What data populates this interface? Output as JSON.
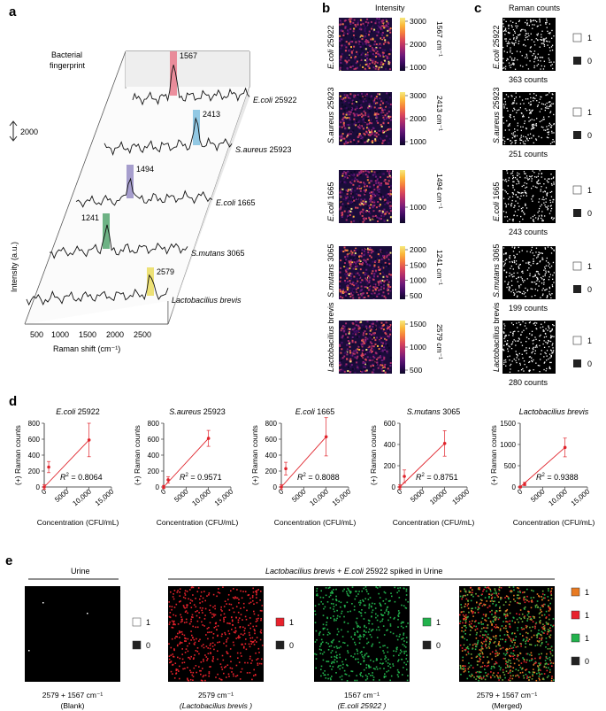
{
  "panel_labels": {
    "a": "a",
    "b": "b",
    "c": "c",
    "d": "d",
    "e": "e"
  },
  "panel_a": {
    "annotation_line1": "Bacterial",
    "annotation_line2": "fingerprint",
    "scale_value": "2000",
    "ylabel": "Intensity (a.u.)",
    "xlabel": "Raman shift (cm⁻¹)",
    "xticks": [
      "500",
      "1000",
      "1500",
      "2000",
      "2500"
    ],
    "peaks": [
      {
        "value": "1567",
        "strain": "E.coli",
        "strain_num": "25922",
        "color": "#e76b7d"
      },
      {
        "value": "2413",
        "strain": "S.aureus",
        "strain_num": "25923",
        "color": "#6fb8dc"
      },
      {
        "value": "1494",
        "strain": "E.coli",
        "strain_num": "1665",
        "color": "#8a7fbd"
      },
      {
        "value": "1241",
        "strain": "S.mutans",
        "strain_num": "3065",
        "color": "#3d9a5c"
      },
      {
        "value": "2579",
        "strain": "Lactobacilius brevis",
        "strain_num": "",
        "color": "#e8d84a"
      }
    ]
  },
  "panel_b": {
    "title": "Intensity",
    "rows": [
      {
        "label_it": "E.coli",
        "label_num": "25922",
        "wn": "1567 cm⁻¹",
        "ticks": [
          "3000",
          "2000",
          "1000"
        ]
      },
      {
        "label_it": "S.aureus",
        "label_num": "25923",
        "wn": "2413 cm⁻¹",
        "ticks": [
          "3000",
          "2000",
          "1000"
        ]
      },
      {
        "label_it": "E.coli",
        "label_num": "1665",
        "wn": "1494 cm⁻¹",
        "ticks": [
          "1000"
        ]
      },
      {
        "label_it": "S.mutans",
        "label_num": "3065",
        "wn": "1241 cm⁻¹",
        "ticks": [
          "2000",
          "1500",
          "1000",
          "500"
        ]
      },
      {
        "label_it": "Lactobacilius",
        "label_num": "brevis",
        "wn": "2579 cm⁻¹",
        "ticks": [
          "1500",
          "1000",
          "500"
        ]
      }
    ]
  },
  "panel_c": {
    "title": "Raman counts",
    "legend_one": "1",
    "legend_zero": "0",
    "rows": [
      {
        "label_it": "E.coli",
        "label_num": "25922",
        "counts": "363 counts"
      },
      {
        "label_it": "S.aureus",
        "label_num": "25923",
        "counts": "251 counts"
      },
      {
        "label_it": "E.coli",
        "label_num": "1665",
        "counts": "243 counts"
      },
      {
        "label_it": "S.mutans",
        "label_num": "3065",
        "counts": "199 counts"
      },
      {
        "label_it": "Lactobacilius",
        "label_num": "brevis",
        "counts": "280 counts"
      }
    ]
  },
  "chart_data": [
    {
      "type": "scatter",
      "title_it": "E.coli",
      "title_num": "25922",
      "xlabel": "Concentration (CFU/mL)",
      "ylabel": "(+) Raman counts",
      "xlim": [
        0,
        15000
      ],
      "ylim": [
        0,
        800
      ],
      "xticks": [
        "0",
        "5000",
        "10,000",
        "15,000"
      ],
      "yticks": [
        "0",
        "200",
        "400",
        "600",
        "800"
      ],
      "x": [
        0,
        1000,
        10000
      ],
      "y": [
        0,
        250,
        590
      ],
      "err": [
        30,
        70,
        210
      ],
      "r2": "= 0.8064"
    },
    {
      "type": "scatter",
      "title_it": "S.aureus",
      "title_num": "25923",
      "xlabel": "Concentration (CFU/mL)",
      "ylabel": "(+) Raman counts",
      "xlim": [
        0,
        15000
      ],
      "ylim": [
        0,
        800
      ],
      "xticks": [
        "0",
        "5000",
        "10,000",
        "15,000"
      ],
      "yticks": [
        "0",
        "200",
        "400",
        "600",
        "800"
      ],
      "x": [
        0,
        1000,
        10000
      ],
      "y": [
        0,
        90,
        610
      ],
      "err": [
        20,
        40,
        100
      ],
      "r2": "= 0.9571"
    },
    {
      "type": "scatter",
      "title_it": "E.coli",
      "title_num": "1665",
      "xlabel": "Concentration (CFU/mL)",
      "ylabel": "(+) Raman counts",
      "xlim": [
        0,
        15000
      ],
      "ylim": [
        0,
        800
      ],
      "xticks": [
        "0",
        "5000",
        "10,000",
        "15,000"
      ],
      "yticks": [
        "0",
        "200",
        "400",
        "600",
        "800"
      ],
      "x": [
        0,
        1000,
        10000
      ],
      "y": [
        0,
        230,
        630
      ],
      "err": [
        30,
        80,
        240
      ],
      "r2": "= 0.8088"
    },
    {
      "type": "scatter",
      "title_it": "S.mutans",
      "title_num": "3065",
      "xlabel": "Concentration (CFU/mL)",
      "ylabel": "(+) Raman counts",
      "xlim": [
        0,
        15000
      ],
      "ylim": [
        0,
        600
      ],
      "xticks": [
        "0",
        "5000",
        "10000",
        "15000"
      ],
      "yticks": [
        "0",
        "200",
        "400",
        "600"
      ],
      "x": [
        0,
        1000,
        10000
      ],
      "y": [
        0,
        100,
        410
      ],
      "err": [
        20,
        60,
        120
      ],
      "r2": "= 0.8751"
    },
    {
      "type": "scatter",
      "title_it": "Lactobacilius brevis",
      "title_num": "",
      "xlabel": "Concentration (CFU/mL)",
      "ylabel": "(+) Raman counts",
      "xlim": [
        0,
        15000
      ],
      "ylim": [
        0,
        1500
      ],
      "xticks": [
        "0",
        "5000",
        "10,000",
        "15,000"
      ],
      "yticks": [
        "0",
        "500",
        "1000",
        "1500"
      ],
      "x": [
        0,
        1000,
        10000
      ],
      "y": [
        0,
        70,
        930
      ],
      "err": [
        20,
        40,
        220
      ],
      "r2": "= 0.9388"
    }
  ],
  "panel_e": {
    "header_left": "Urine",
    "header_right_it": "Lactobacilius brevis",
    "header_right_mid": "+",
    "header_right_it2": "E.coli",
    "header_right_tail": "25922  spiked in Urine",
    "legend_one": "1",
    "legend_zero": "0",
    "images": [
      {
        "line1": "2579 + 1567 cm⁻¹",
        "line2": "(Blank)",
        "color": "#ffffff"
      },
      {
        "line1": "2579 cm⁻¹",
        "line2": "(Lactobacilius brevis )",
        "color": "#e8222c"
      },
      {
        "line1": "1567 cm⁻¹",
        "line2": "(E.coli 25922 )",
        "color": "#22b24c"
      },
      {
        "line1": "2579 + 1567 cm⁻¹",
        "line2": "(Merged)",
        "color": "#e87a22"
      }
    ]
  }
}
